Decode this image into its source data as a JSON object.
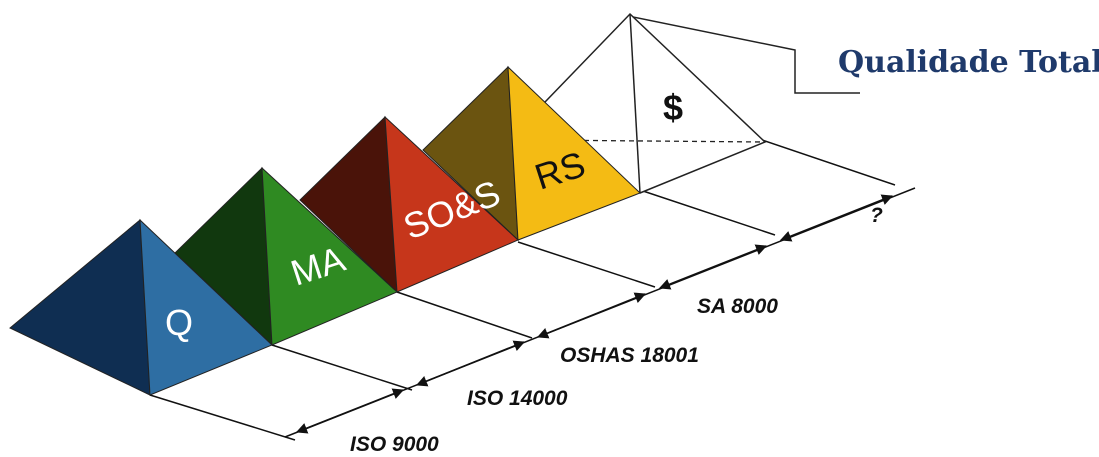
{
  "title": "Qualidade Total",
  "colors": {
    "title": "#1f3a6b",
    "q": "#2e6ea3",
    "q_dark": "#0f2e52",
    "ma": "#2f8a22",
    "ma_dark": "#11380e",
    "sos": "#c6361b",
    "sos_dark": "#4a1309",
    "rs": "#f4bb14",
    "rs_dark": "#6b5410",
    "outline": "#222222"
  },
  "pyramids": [
    {
      "id": "q",
      "label": "Q"
    },
    {
      "id": "ma",
      "label": "MA"
    },
    {
      "id": "sos",
      "label": "SO&S"
    },
    {
      "id": "rs",
      "label": "RS"
    },
    {
      "id": "money",
      "label": "$"
    }
  ],
  "standards": [
    {
      "id": "iso9000",
      "label": "ISO 9000"
    },
    {
      "id": "iso14000",
      "label": "ISO 14000"
    },
    {
      "id": "oshas18001",
      "label": "OSHAS 18001"
    },
    {
      "id": "sa8000",
      "label": "SA 8000"
    },
    {
      "id": "unknown",
      "label": "?"
    }
  ]
}
